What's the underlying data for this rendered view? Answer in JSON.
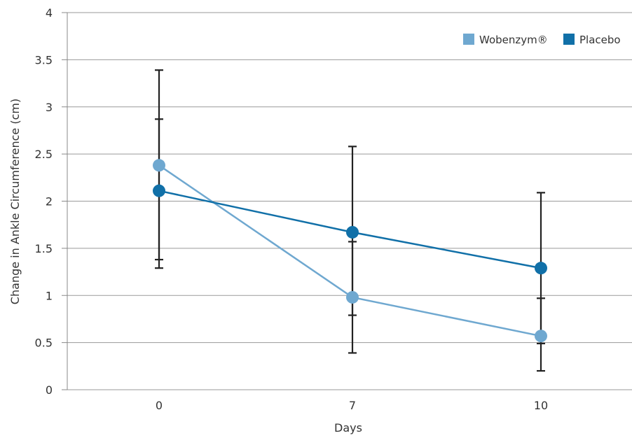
{
  "chart_data": {
    "type": "line",
    "title": "",
    "xlabel": "Days",
    "ylabel": "Change in Ankle Circumference (cm)",
    "categories": [
      "0",
      "7",
      "10"
    ],
    "ylim": [
      0,
      4
    ],
    "yticks": [
      "0",
      "0.5",
      "1",
      "1.5",
      "2",
      "2.5",
      "3",
      "3.5",
      "4"
    ],
    "grid": true,
    "legend_position": "top-right",
    "series": [
      {
        "name": "Wobenzym®",
        "color": "#6fa8d0",
        "values": [
          2.38,
          0.98,
          0.57
        ],
        "error_low": [
          1.38,
          0.39,
          0.2
        ],
        "error_high": [
          2.87,
          1.57,
          0.97
        ]
      },
      {
        "name": "Placebo",
        "color": "#1170a8",
        "values": [
          2.11,
          1.67,
          1.29
        ],
        "error_low": [
          1.29,
          0.79,
          0.49
        ],
        "error_high": [
          3.39,
          2.58,
          2.09
        ]
      }
    ]
  }
}
